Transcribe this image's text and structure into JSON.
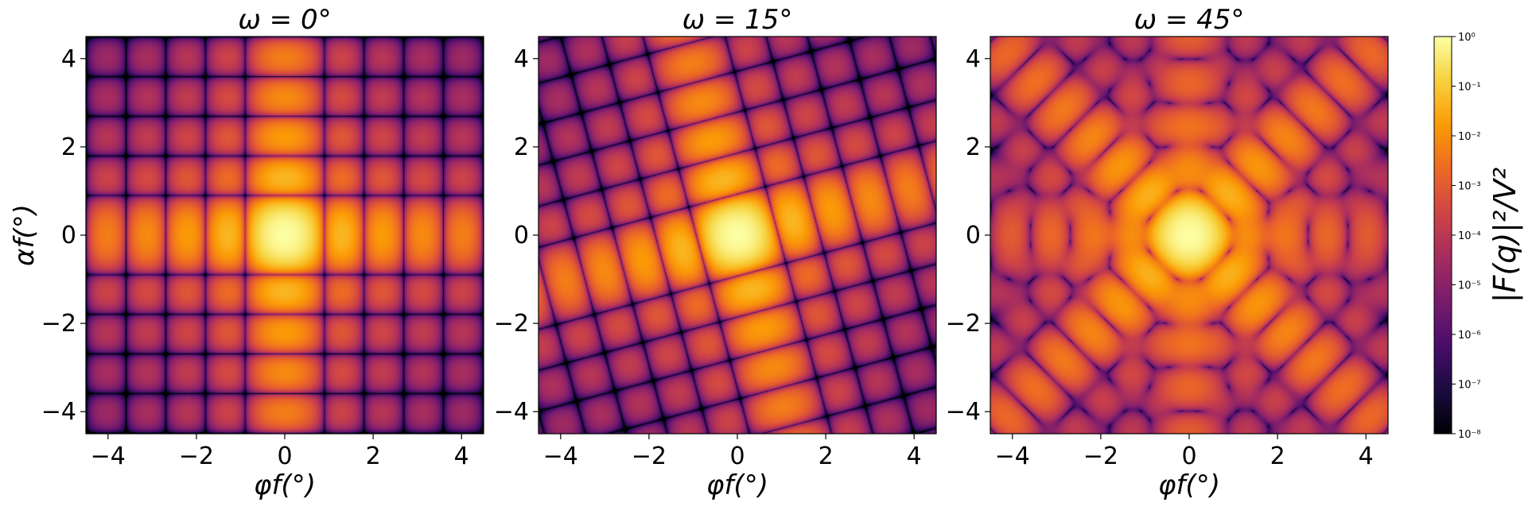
{
  "figure": {
    "colormap": [
      "#000004",
      "#1b0c41",
      "#4a0c6b",
      "#781c6d",
      "#a52c60",
      "#cf4446",
      "#ed6925",
      "#fb9b06",
      "#f7d13d",
      "#fcffa4"
    ]
  },
  "chart_data": [
    {
      "type": "heatmap",
      "title": "ω = 0°",
      "xlabel": "φf(°)",
      "ylabel": "αf(°)",
      "xlim": [
        -4.5,
        4.5
      ],
      "ylim": [
        -4.5,
        4.5
      ],
      "xticks": [
        -4,
        -2,
        0,
        2,
        4
      ],
      "yticks": [
        -4,
        -2,
        0,
        2,
        4
      ],
      "xtick_labels": [
        "−4",
        "−2",
        "0",
        "2",
        "4"
      ],
      "ytick_labels": [
        "−4",
        "−2",
        "0",
        "2",
        "4"
      ],
      "omega_deg": 0
    },
    {
      "type": "heatmap",
      "title": "ω = 15°",
      "xlabel": "φf(°)",
      "ylabel": "",
      "xlim": [
        -4.5,
        4.5
      ],
      "ylim": [
        -4.5,
        4.5
      ],
      "xticks": [
        -4,
        -2,
        0,
        2,
        4
      ],
      "yticks": [
        -4,
        -2,
        0,
        2,
        4
      ],
      "xtick_labels": [
        "−4",
        "−2",
        "0",
        "2",
        "4"
      ],
      "ytick_labels": [
        "−4",
        "−2",
        "0",
        "2",
        "4"
      ],
      "omega_deg": 15
    },
    {
      "type": "heatmap",
      "title": "ω = 45°",
      "xlabel": "φf(°)",
      "ylabel": "",
      "xlim": [
        -4.5,
        4.5
      ],
      "ylim": [
        -4.5,
        4.5
      ],
      "xticks": [
        -4,
        -2,
        0,
        2,
        4
      ],
      "yticks": [
        -4,
        -2,
        0,
        2,
        4
      ],
      "xtick_labels": [
        "−4",
        "−2",
        "0",
        "2",
        "4"
      ],
      "ytick_labels": [
        "−4",
        "−2",
        "0",
        "2",
        "4"
      ],
      "omega_deg": 45
    }
  ],
  "colorbar": {
    "label": "|F(q)|²/V²",
    "scale": "log",
    "range": [
      1e-08,
      1
    ],
    "tick_labels": [
      "10⁰",
      "10⁻¹",
      "10⁻²",
      "10⁻³",
      "10⁻⁴",
      "10⁻⁵",
      "10⁻⁶",
      "10⁻⁷",
      "10⁻⁸"
    ]
  }
}
